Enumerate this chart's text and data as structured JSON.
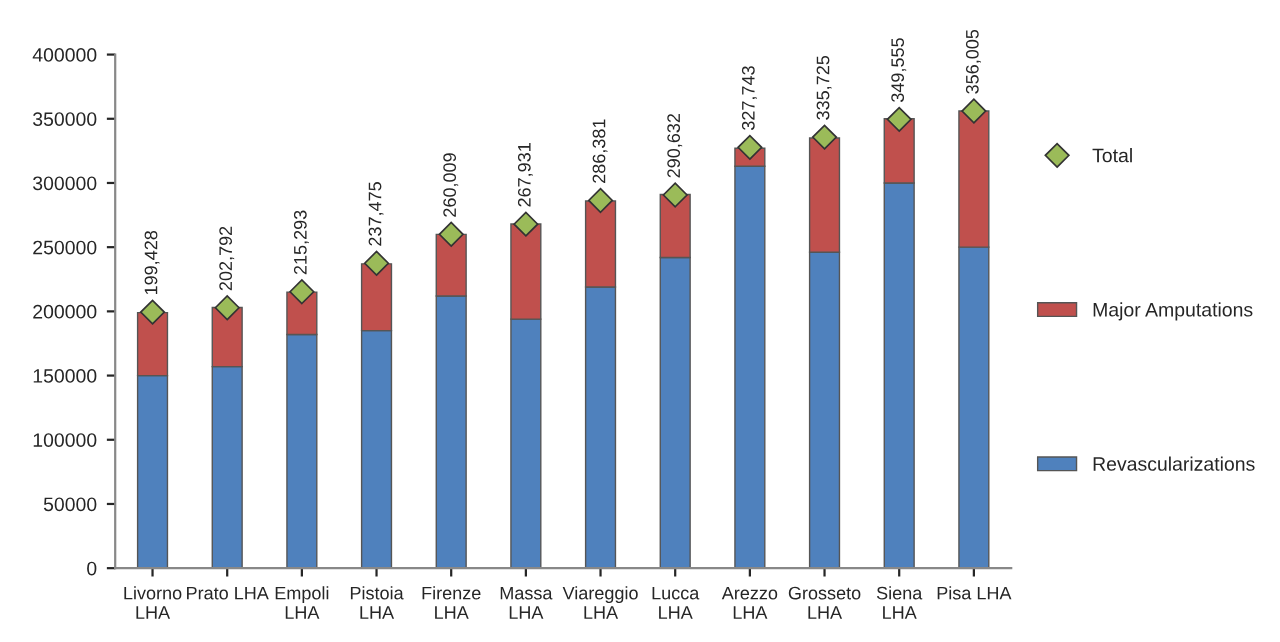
{
  "chart_data": {
    "type": "bar",
    "stacked": true,
    "categories": [
      "Livorno\nLHA",
      "Prato LHA",
      "Empoli\nLHA",
      "Pistoia\nLHA",
      "Firenze\nLHA",
      "Massa\nLHA",
      "Viareggio\nLHA",
      "Lucca\nLHA",
      "Arezzo\nLHA",
      "Grosseto\nLHA",
      "Siena\nLHA",
      "Pisa LHA"
    ],
    "series": [
      {
        "name": "Revascularizations",
        "color": "#4f81bd",
        "values": [
          150000,
          157000,
          182000,
          185000,
          212000,
          194000,
          219000,
          242000,
          313000,
          246000,
          300000,
          250000
        ]
      },
      {
        "name": "Major Amputations",
        "color": "#c0504d",
        "values": [
          49000,
          46000,
          33000,
          52000,
          48000,
          74000,
          67000,
          49000,
          14000,
          89000,
          50000,
          106000
        ]
      },
      {
        "name": "Total",
        "type": "scatter",
        "color": "#9bbb59",
        "marker": "diamond",
        "values": [
          199428,
          202792,
          215293,
          237475,
          260009,
          267931,
          286381,
          290632,
          327743,
          335725,
          349555,
          356005
        ],
        "value_labels": [
          "199,428",
          "202,792",
          "215,293",
          "237,475",
          "260,009",
          "267,931",
          "286,381",
          "290,632",
          "327,743",
          "335,725",
          "349,555",
          "356,005"
        ]
      }
    ],
    "ylim": [
      0,
      400000
    ],
    "yticks": [
      0,
      50000,
      100000,
      150000,
      200000,
      250000,
      300000,
      350000,
      400000
    ],
    "grid": false,
    "legend": "right"
  }
}
